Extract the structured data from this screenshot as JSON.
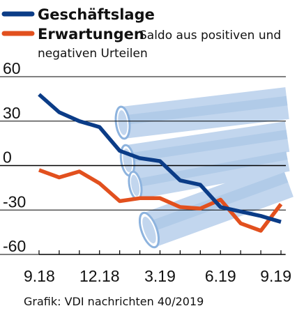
{
  "chart_data": {
    "type": "line",
    "x_tick_labels": [
      "9.18",
      "12.18",
      "3.19",
      "6.19",
      "9.19"
    ],
    "y_tick_labels": [
      "60",
      "30",
      "0",
      "-30",
      "-60"
    ],
    "y_ticks": [
      60,
      30,
      0,
      -30,
      -60
    ],
    "ylim": [
      -60,
      60
    ],
    "x_range": [
      0,
      12
    ],
    "grid": "horizontal",
    "legend_position": "top-left",
    "legend_note": "Saldo aus positiven und negativen Urteilen",
    "series": [
      {
        "name": "Geschäftslage",
        "color": "#0b3c87",
        "x": [
          0,
          1,
          2,
          3,
          4,
          5,
          6,
          7,
          8,
          9,
          10,
          11,
          12
        ],
        "values": [
          48,
          36,
          30,
          26,
          10,
          5,
          3,
          -10,
          -13,
          -28,
          -31,
          -34,
          -38
        ]
      },
      {
        "name": "Erwartungen",
        "color": "#e2501e",
        "x": [
          0,
          1,
          2,
          3,
          4,
          5,
          6,
          7,
          8,
          9,
          10,
          11,
          12
        ],
        "values": [
          -3,
          -8,
          -4,
          -12,
          -24,
          -22,
          -22,
          -28,
          -29,
          -23,
          -39,
          -44,
          -26
        ]
      }
    ],
    "source": "Grafik: VDI nachrichten 40/2019"
  },
  "colors": {
    "pipe_light": "#c2d6ee",
    "pipe_mid": "#a9c6e6",
    "pipe_dark": "#8db3de",
    "gridline": "#000000"
  }
}
